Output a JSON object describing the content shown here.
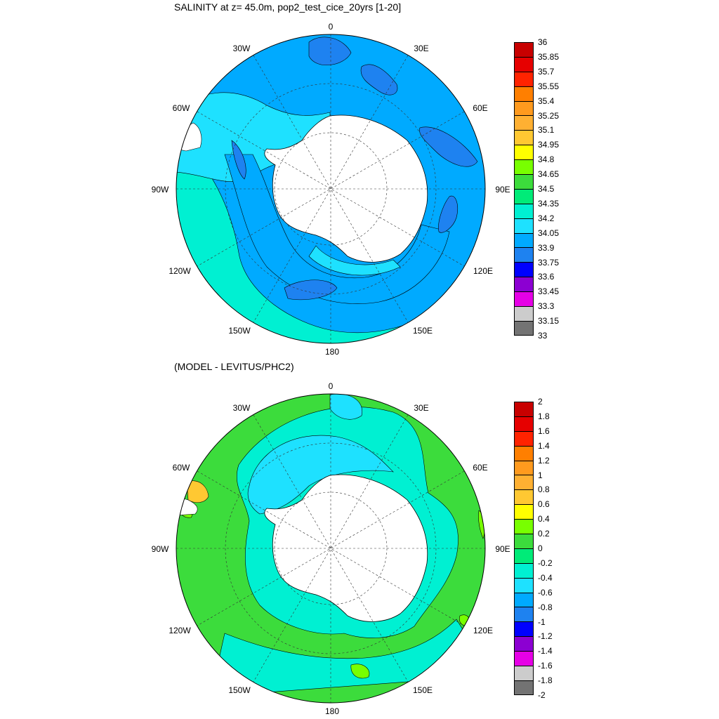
{
  "panels": [
    {
      "title": "SALINITY at z=  45.0m, pop2_test_cice_20yrs [1-20]",
      "colorbar": {
        "labels": [
          "36",
          "35.85",
          "35.7",
          "35.55",
          "35.4",
          "35.25",
          "35.1",
          "34.95",
          "34.8",
          "34.65",
          "34.5",
          "34.35",
          "34.2",
          "34.05",
          "33.9",
          "33.75",
          "33.6",
          "33.45",
          "33.3",
          "33.15",
          "33"
        ],
        "colors": [
          "#c80000",
          "#e60000",
          "#ff2300",
          "#ff7f00",
          "#ff9a1e",
          "#ffb032",
          "#ffc832",
          "#ffff00",
          "#78ff00",
          "#3cdc3c",
          "#00eb78",
          "#00f0d2",
          "#1ee1ff",
          "#00aaff",
          "#1e82f0",
          "#0000ff",
          "#8c00d2",
          "#e600e6",
          "#cccccc",
          "#737373"
        ]
      },
      "field": {
        "ocean_color": "#00aaff",
        "regions": [
          {
            "name": "atlantic-sector",
            "color": "#1ee1ff"
          },
          {
            "name": "pacific-sector-band",
            "color": "#00aaff"
          },
          {
            "name": "pacific-outer",
            "color": "#00f0d2"
          },
          {
            "name": "fresh-patches",
            "color": "#1e82f0"
          },
          {
            "name": "coastal-fresh",
            "color": "#1ee1ff"
          }
        ]
      }
    },
    {
      "title": "(MODEL - LEVITUS/PHC2)",
      "colorbar": {
        "labels": [
          "2",
          "1.8",
          "1.6",
          "1.4",
          "1.2",
          "1",
          "0.8",
          "0.6",
          "0.4",
          "0.2",
          "0",
          "-0.2",
          "-0.4",
          "-0.6",
          "-0.8",
          "-1",
          "-1.2",
          "-1.4",
          "-1.6",
          "-1.8",
          "-2"
        ],
        "colors": [
          "#c80000",
          "#e60000",
          "#ff2300",
          "#ff7f00",
          "#ff9a1e",
          "#ffb032",
          "#ffc832",
          "#ffff00",
          "#78ff00",
          "#3cdc3c",
          "#00eb78",
          "#00f0d2",
          "#1ee1ff",
          "#00aaff",
          "#1e82f0",
          "#0000ff",
          "#8c00d2",
          "#e600e6",
          "#cccccc",
          "#737373"
        ]
      },
      "field": {
        "ocean_color": "#3cdc3c",
        "regions": [
          {
            "name": "negative-anomaly-ring",
            "color": "#00f0d2"
          },
          {
            "name": "weddell-negative",
            "color": "#1ee1ff"
          },
          {
            "name": "positive-patches",
            "color": "#78ff00"
          },
          {
            "name": "drake-positive",
            "color": "#ffc832"
          }
        ]
      }
    }
  ],
  "map": {
    "longitude_labels": [
      "0",
      "30E",
      "60E",
      "90E",
      "120E",
      "150E",
      "180",
      "150W",
      "120W",
      "90W",
      "60W",
      "30W"
    ],
    "land_color": "#ffffff",
    "graticule": "dashed"
  }
}
